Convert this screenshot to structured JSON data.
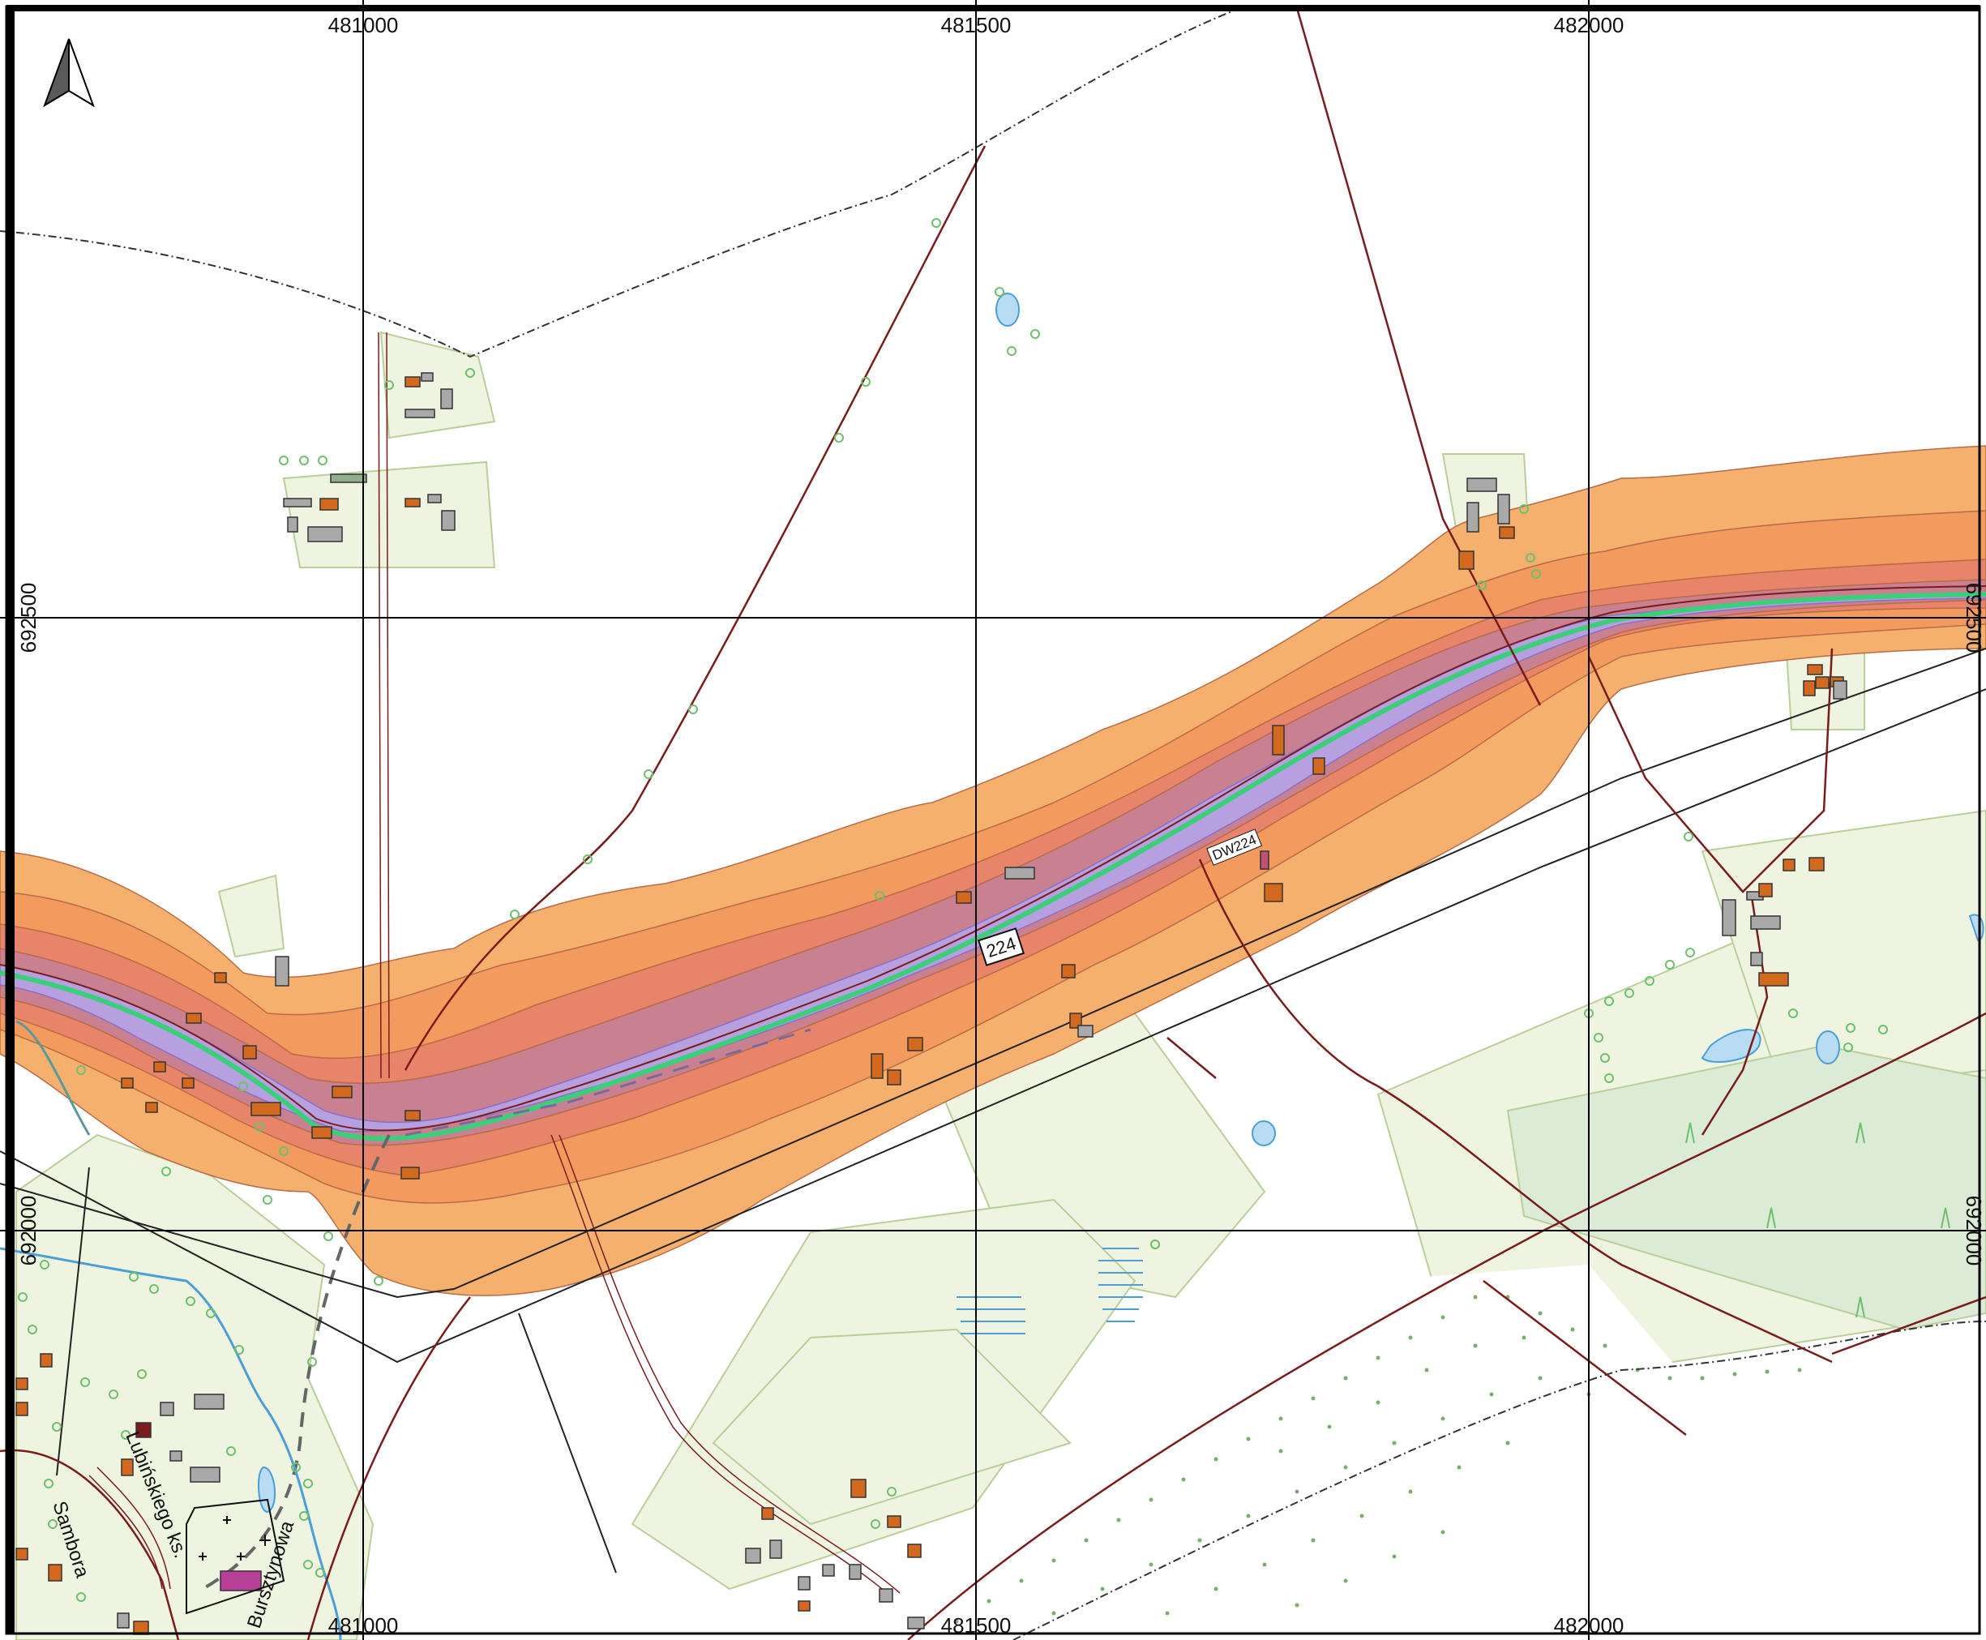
{
  "map": {
    "grid_labels": {
      "easting_top": [
        "481000",
        "481500",
        "482000"
      ],
      "easting_bottom": [
        "481000",
        "481500",
        "482000"
      ],
      "northing_left": [
        "692500",
        "692000"
      ],
      "northing_right": [
        "692500",
        "692000"
      ]
    },
    "road": {
      "shield": "224",
      "label": "DW224"
    },
    "streets": [
      "Lubińskiego ks.",
      "Sambora",
      "Bursztynowa"
    ],
    "north_arrow": "north-arrow-icon",
    "colors": {
      "noise_zone_outer": "#f6b06e",
      "noise_zone_2": "#f39a5e",
      "noise_zone_3": "#e8846a",
      "noise_zone_4": "#c98090",
      "noise_zone_inner": "#b7a0e0",
      "road_centerline": "#3ccf7a",
      "building_orange": "#d2691e",
      "building_gray": "#a9a9a9",
      "green_area": "#eef4df",
      "forest": "#dcebd6",
      "water": "#b7dcf3",
      "track": "#7a1c1c",
      "grid": "#000000"
    }
  }
}
